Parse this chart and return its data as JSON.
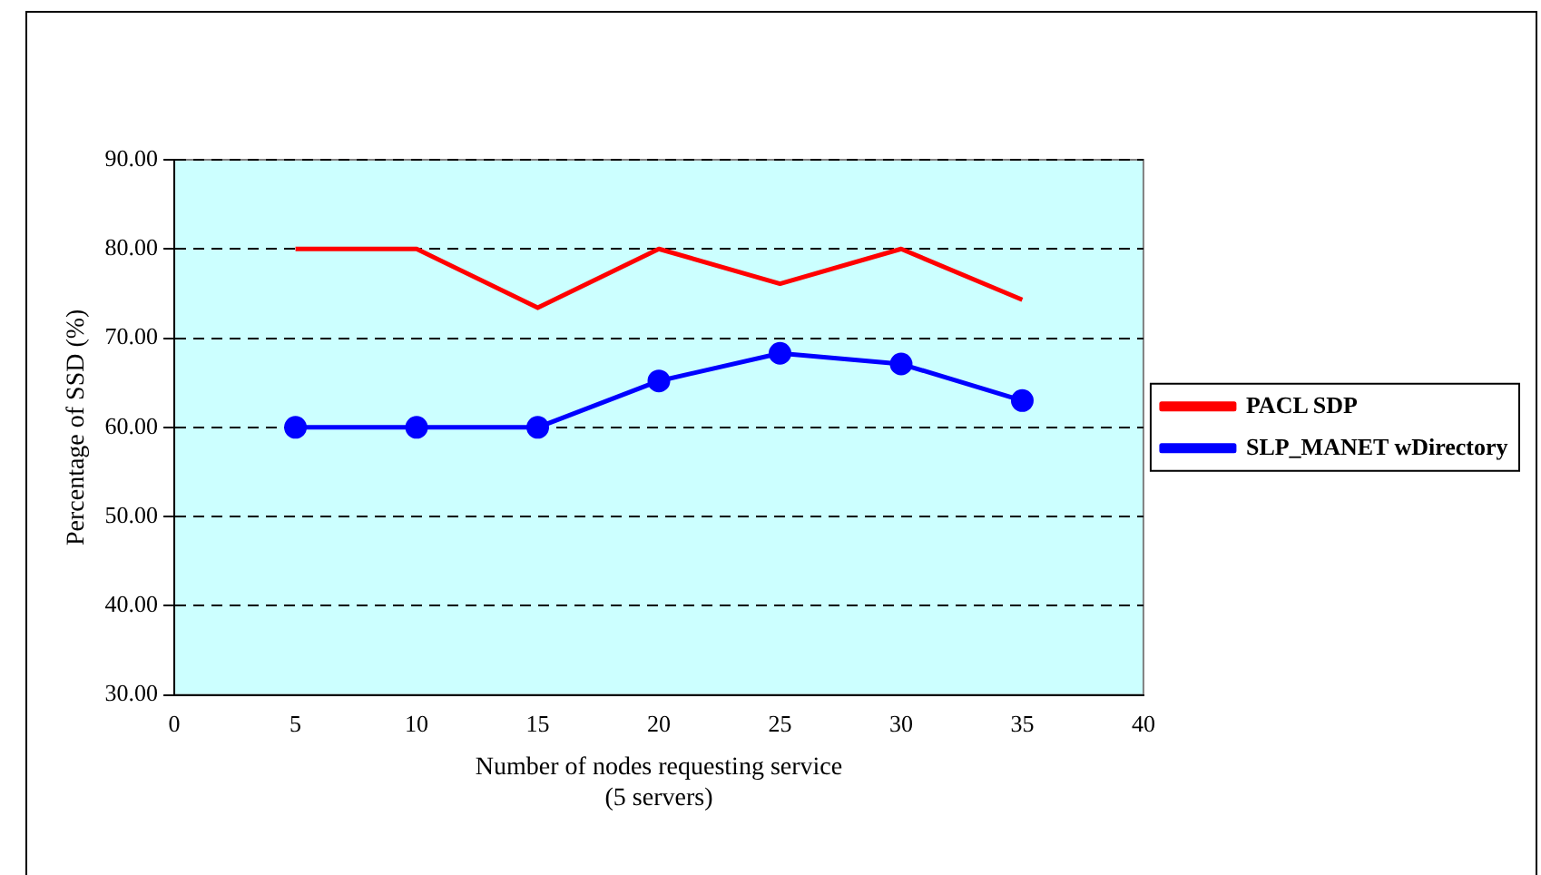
{
  "chart_data": {
    "type": "line",
    "xlabel": "Number of nodes requesting service\n(5 servers)",
    "ylabel": "Percentage of SSD (%)",
    "x": [
      5,
      10,
      15,
      20,
      25,
      30,
      35
    ],
    "series": [
      {
        "name": "PACL SDP",
        "color": "#ff0000",
        "marker": "none",
        "values": [
          80,
          80,
          73.4,
          80,
          76.1,
          80,
          74.3
        ]
      },
      {
        "name": "SLP_MANET wDirectory",
        "color": "#0000ff",
        "marker": "circle",
        "values": [
          60,
          60,
          60,
          65.2,
          68.3,
          67.1,
          63
        ]
      }
    ],
    "xlim": [
      0,
      40
    ],
    "xticks": [
      0,
      5,
      10,
      15,
      20,
      25,
      30,
      35,
      40
    ],
    "ylim": [
      30,
      90
    ],
    "yticks": [
      {
        "value": 30,
        "label": "30.00"
      },
      {
        "value": 40,
        "label": "40.00"
      },
      {
        "value": 50,
        "label": "50.00"
      },
      {
        "value": 60,
        "label": "60.00"
      },
      {
        "value": 70,
        "label": "70.00"
      },
      {
        "value": 80,
        "label": "80.00"
      },
      {
        "value": 90,
        "label": "90.00"
      }
    ],
    "grid": "y",
    "line_style": "solid",
    "legend": "right"
  }
}
